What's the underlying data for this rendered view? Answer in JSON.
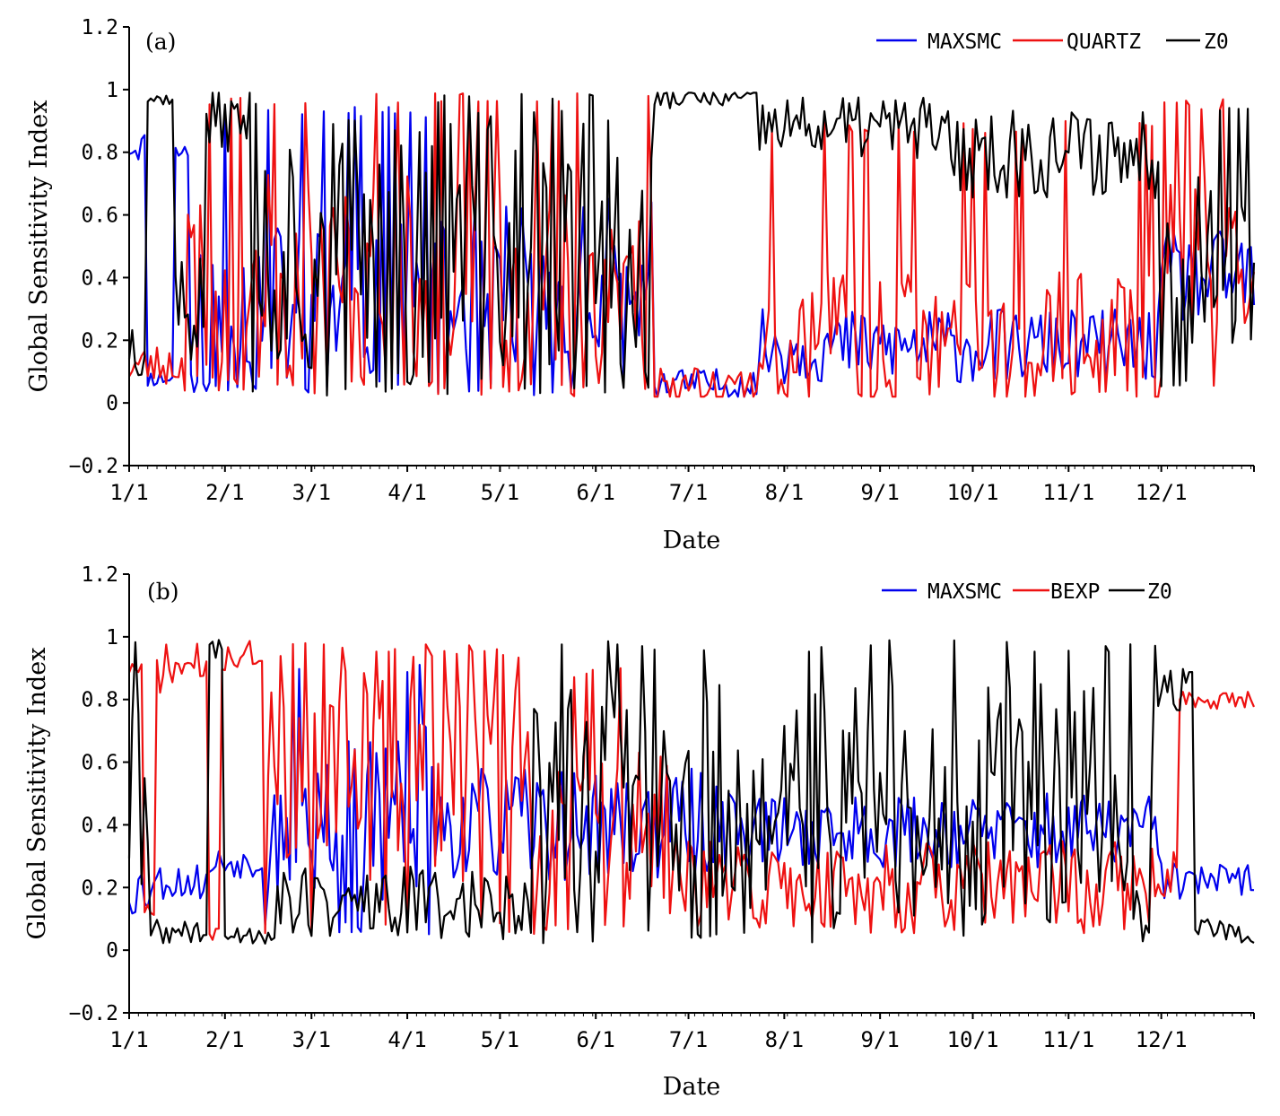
{
  "chart_data": [
    {
      "type": "line",
      "panel_label": "(a)",
      "xlabel": "Date",
      "ylabel": "Global Sensitivity Index",
      "ylim": [
        -0.2,
        1.2
      ],
      "xlim": [
        1,
        365
      ],
      "y_ticks": [
        1.2,
        1,
        0.8,
        0.6,
        0.4,
        0.2,
        0,
        -0.2
      ],
      "y_tick_labels": [
        "1.2",
        "1",
        "0.8",
        "0.6",
        "0.4",
        "0.2",
        "0",
        "−0.2"
      ],
      "x_ticks": [
        1,
        32,
        60,
        91,
        121,
        152,
        182,
        213,
        244,
        274,
        305,
        335
      ],
      "x_tick_labels": [
        "1/1",
        "2/1",
        "3/1",
        "4/1",
        "5/1",
        "6/1",
        "7/1",
        "8/1",
        "9/1",
        "10/1",
        "11/1",
        "12/1"
      ],
      "legend_position": "top-right",
      "series": [
        {
          "name": "MAXSMC",
          "color": "#0000ee",
          "seed": 11,
          "segments": [
            {
              "start": 1,
              "end": 6,
              "base": 0.82,
              "amp": 0.05,
              "lo": 0.72,
              "hi": 0.9
            },
            {
              "start": 7,
              "end": 15,
              "base": 0.08,
              "amp": 0.03,
              "lo": 0.05,
              "hi": 0.15
            },
            {
              "start": 16,
              "end": 20,
              "base": 0.8,
              "amp": 0.05,
              "lo": 0.68,
              "hi": 0.85
            },
            {
              "start": 21,
              "end": 112,
              "base": 0.3,
              "amp": 0.28,
              "lo": 0.03,
              "hi": 0.95
            },
            {
              "start": 113,
              "end": 170,
              "base": 0.3,
              "amp": 0.22,
              "lo": 0.02,
              "hi": 0.66
            },
            {
              "start": 171,
              "end": 204,
              "base": 0.06,
              "amp": 0.05,
              "lo": 0.02,
              "hi": 0.36
            },
            {
              "start": 205,
              "end": 334,
              "base": 0.18,
              "amp": 0.12,
              "lo": 0.02,
              "hi": 0.68
            },
            {
              "start": 335,
              "end": 365,
              "base": 0.4,
              "amp": 0.15,
              "lo": 0.1,
              "hi": 0.62
            }
          ]
        },
        {
          "name": "QUARTZ",
          "color": "#ee1111",
          "seed": 23,
          "segments": [
            {
              "start": 1,
              "end": 18,
              "base": 0.12,
              "amp": 0.07,
              "lo": 0.04,
              "hi": 0.3
            },
            {
              "start": 19,
              "end": 170,
              "base": 0.38,
              "amp": 0.35,
              "lo": 0.02,
              "hi": 0.99
            },
            {
              "start": 171,
              "end": 204,
              "base": 0.06,
              "amp": 0.06,
              "lo": 0.02,
              "hi": 0.7
            },
            {
              "start": 205,
              "end": 334,
              "base": 0.2,
              "amp": 0.22,
              "lo": 0.02,
              "hi": 0.9
            },
            {
              "start": 335,
              "end": 365,
              "base": 0.5,
              "amp": 0.25,
              "lo": 0.05,
              "hi": 0.97
            }
          ]
        },
        {
          "name": "Z0",
          "color": "#000000",
          "seed": 37,
          "segments": [
            {
              "start": 1,
              "end": 6,
              "base": 0.2,
              "amp": 0.12,
              "lo": 0.03,
              "hi": 0.32
            },
            {
              "start": 7,
              "end": 15,
              "base": 0.97,
              "amp": 0.02,
              "lo": 0.93,
              "hi": 0.99
            },
            {
              "start": 16,
              "end": 25,
              "base": 0.3,
              "amp": 0.2,
              "lo": 0.05,
              "hi": 0.6
            },
            {
              "start": 26,
              "end": 40,
              "base": 0.9,
              "amp": 0.1,
              "lo": 0.6,
              "hi": 0.99
            },
            {
              "start": 41,
              "end": 170,
              "base": 0.5,
              "amp": 0.45,
              "lo": 0.02,
              "hi": 0.99
            },
            {
              "start": 171,
              "end": 204,
              "base": 0.97,
              "amp": 0.03,
              "lo": 0.9,
              "hi": 0.99
            },
            {
              "start": 205,
              "end": 262,
              "base": 0.88,
              "amp": 0.1,
              "lo": 0.55,
              "hi": 0.99
            },
            {
              "start": 263,
              "end": 334,
              "base": 0.8,
              "amp": 0.15,
              "lo": 0.3,
              "hi": 0.99
            },
            {
              "start": 335,
              "end": 365,
              "base": 0.45,
              "amp": 0.28,
              "lo": 0.05,
              "hi": 0.95
            }
          ]
        }
      ]
    },
    {
      "type": "line",
      "panel_label": "(b)",
      "xlabel": "Date",
      "ylabel": "Global Sensitivity Index",
      "ylim": [
        -0.2,
        1.2
      ],
      "xlim": [
        1,
        365
      ],
      "y_ticks": [
        1.2,
        1,
        0.8,
        0.6,
        0.4,
        0.2,
        0,
        -0.2
      ],
      "y_tick_labels": [
        "1.2",
        "1",
        "0.8",
        "0.6",
        "0.4",
        "0.2",
        "0",
        "−0.2"
      ],
      "x_ticks": [
        1,
        32,
        60,
        91,
        121,
        152,
        182,
        213,
        244,
        274,
        305,
        335
      ],
      "x_tick_labels": [
        "1/1",
        "2/1",
        "3/1",
        "4/1",
        "5/1",
        "6/1",
        "7/1",
        "8/1",
        "9/1",
        "10/1",
        "11/1",
        "12/1"
      ],
      "legend_position": "top-right",
      "series": [
        {
          "name": "MAXSMC",
          "color": "#0000ee",
          "seed": 53,
          "segments": [
            {
              "start": 1,
              "end": 7,
              "base": 0.2,
              "amp": 0.1,
              "lo": 0.1,
              "hi": 0.38
            },
            {
              "start": 8,
              "end": 27,
              "base": 0.22,
              "amp": 0.06,
              "lo": 0.12,
              "hi": 0.3
            },
            {
              "start": 28,
              "end": 44,
              "base": 0.28,
              "amp": 0.05,
              "lo": 0.2,
              "hi": 0.35
            },
            {
              "start": 45,
              "end": 100,
              "base": 0.45,
              "amp": 0.3,
              "lo": 0.05,
              "hi": 0.92
            },
            {
              "start": 101,
              "end": 200,
              "base": 0.4,
              "amp": 0.18,
              "lo": 0.02,
              "hi": 0.75
            },
            {
              "start": 201,
              "end": 334,
              "base": 0.38,
              "amp": 0.12,
              "lo": 0.1,
              "hi": 0.7
            },
            {
              "start": 335,
              "end": 365,
              "base": 0.22,
              "amp": 0.06,
              "lo": 0.1,
              "hi": 0.3
            }
          ]
        },
        {
          "name": "BEXP",
          "color": "#ee1111",
          "seed": 71,
          "segments": [
            {
              "start": 1,
              "end": 5,
              "base": 0.9,
              "amp": 0.03,
              "lo": 0.85,
              "hi": 0.95
            },
            {
              "start": 6,
              "end": 9,
              "base": 0.1,
              "amp": 0.05,
              "lo": 0.03,
              "hi": 0.2
            },
            {
              "start": 10,
              "end": 26,
              "base": 0.9,
              "amp": 0.08,
              "lo": 0.5,
              "hi": 0.98
            },
            {
              "start": 27,
              "end": 30,
              "base": 0.05,
              "amp": 0.02,
              "lo": 0.02,
              "hi": 0.1
            },
            {
              "start": 31,
              "end": 44,
              "base": 0.94,
              "amp": 0.05,
              "lo": 0.8,
              "hi": 0.99
            },
            {
              "start": 45,
              "end": 130,
              "base": 0.6,
              "amp": 0.38,
              "lo": 0.05,
              "hi": 0.98
            },
            {
              "start": 131,
              "end": 175,
              "base": 0.4,
              "amp": 0.25,
              "lo": 0.05,
              "hi": 0.9
            },
            {
              "start": 176,
              "end": 340,
              "base": 0.2,
              "amp": 0.15,
              "lo": 0.02,
              "hi": 0.55
            },
            {
              "start": 341,
              "end": 365,
              "base": 0.8,
              "amp": 0.03,
              "lo": 0.76,
              "hi": 0.85
            }
          ]
        },
        {
          "name": "Z0",
          "color": "#000000",
          "seed": 89,
          "segments": [
            {
              "start": 1,
              "end": 7,
              "base": 0.5,
              "amp": 0.45,
              "lo": 0.02,
              "hi": 0.99
            },
            {
              "start": 8,
              "end": 26,
              "base": 0.06,
              "amp": 0.04,
              "lo": 0.02,
              "hi": 0.2
            },
            {
              "start": 27,
              "end": 31,
              "base": 0.95,
              "amp": 0.05,
              "lo": 0.4,
              "hi": 0.99
            },
            {
              "start": 32,
              "end": 48,
              "base": 0.05,
              "amp": 0.03,
              "lo": 0.02,
              "hi": 0.15
            },
            {
              "start": 49,
              "end": 130,
              "base": 0.15,
              "amp": 0.12,
              "lo": 0.02,
              "hi": 0.98
            },
            {
              "start": 131,
              "end": 334,
              "base": 0.45,
              "amp": 0.4,
              "lo": 0.02,
              "hi": 0.99
            },
            {
              "start": 335,
              "end": 345,
              "base": 0.82,
              "amp": 0.1,
              "lo": 0.55,
              "hi": 0.99
            },
            {
              "start": 346,
              "end": 365,
              "base": 0.06,
              "amp": 0.04,
              "lo": 0.02,
              "hi": 0.88
            }
          ]
        }
      ]
    }
  ]
}
